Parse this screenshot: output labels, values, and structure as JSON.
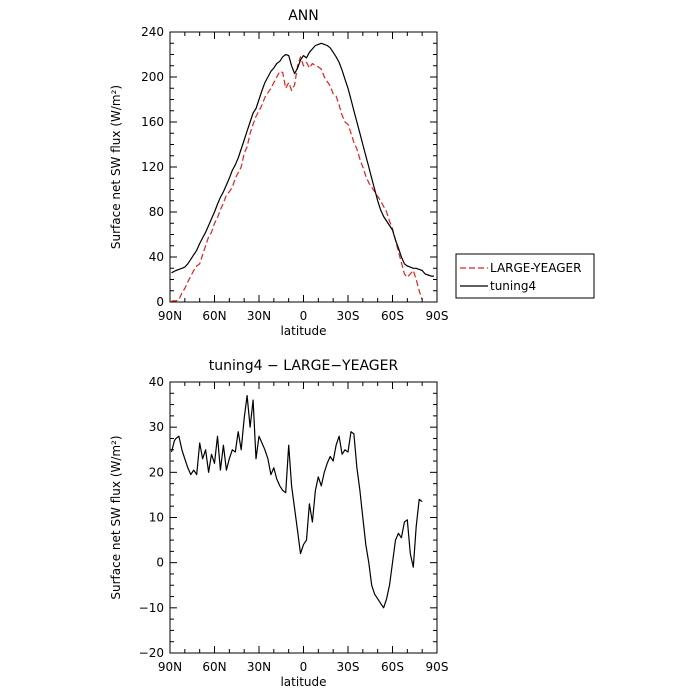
{
  "chart_data": [
    {
      "type": "line",
      "title": "ANN",
      "xlabel": "latitude",
      "ylabel": "Surface net SW flux (W/m²)",
      "xlim": [
        90,
        -90
      ],
      "ylim": [
        0,
        240
      ],
      "x_ticks": [
        90,
        60,
        30,
        0,
        -30,
        -60,
        -90
      ],
      "x_tick_labels": [
        "90N",
        "60N",
        "30N",
        "0",
        "30S",
        "60S",
        "90S"
      ],
      "y_ticks": [
        0,
        40,
        80,
        120,
        160,
        200,
        240
      ],
      "y_tick_labels": [
        "0",
        "40",
        "80",
        "120",
        "160",
        "200",
        "240"
      ],
      "legend_position": "right, outside the plot",
      "series": [
        {
          "name": "LARGE-YEAGER",
          "color": "#e32020",
          "dash": "dashed",
          "x": [
            89,
            86,
            84,
            82,
            80,
            78,
            76,
            74,
            72,
            70,
            68,
            66,
            64,
            62,
            60,
            58,
            56,
            54,
            52,
            50,
            48,
            46,
            44,
            42,
            40,
            38,
            36,
            34,
            32,
            30,
            28,
            26,
            24,
            22,
            20,
            18,
            16,
            14,
            12,
            10,
            8,
            6,
            4,
            2,
            0,
            -2,
            -4,
            -6,
            -8,
            -10,
            -12,
            -14,
            -16,
            -18,
            -20,
            -22,
            -24,
            -26,
            -28,
            -30,
            -32,
            -34,
            -36,
            -38,
            -40,
            -42,
            -44,
            -46,
            -48,
            -50,
            -52,
            -54,
            -56,
            -58,
            -60,
            -62,
            -64,
            -66,
            -68,
            -70,
            -72,
            -74,
            -76,
            -78,
            -80
          ],
          "y": [
            1,
            1,
            2,
            8,
            12,
            18,
            23,
            28,
            32,
            34,
            42,
            50,
            58,
            62,
            70,
            75,
            82,
            88,
            95,
            98,
            102,
            110,
            115,
            120,
            132,
            138,
            150,
            158,
            165,
            170,
            175,
            182,
            186,
            190,
            195,
            200,
            205,
            204,
            190,
            195,
            188,
            193,
            210,
            218,
            210,
            213,
            208,
            212,
            210,
            209,
            207,
            200,
            196,
            192,
            185,
            183,
            175,
            166,
            160,
            158,
            150,
            142,
            136,
            127,
            120,
            112,
            106,
            102,
            98,
            94,
            90,
            85,
            80,
            72,
            65,
            55,
            45,
            35,
            25,
            22,
            25,
            28,
            20,
            10,
            2
          ]
        },
        {
          "name": "tuning4",
          "color": "#000000",
          "dash": "solid",
          "x": [
            89,
            86,
            84,
            82,
            80,
            78,
            76,
            74,
            72,
            70,
            68,
            66,
            64,
            62,
            60,
            58,
            56,
            54,
            52,
            50,
            48,
            46,
            44,
            42,
            40,
            38,
            36,
            34,
            32,
            30,
            28,
            26,
            24,
            22,
            20,
            18,
            16,
            14,
            12,
            10,
            8,
            6,
            4,
            2,
            0,
            -2,
            -4,
            -6,
            -8,
            -10,
            -12,
            -14,
            -16,
            -18,
            -20,
            -22,
            -24,
            -26,
            -28,
            -30,
            -32,
            -34,
            -36,
            -38,
            -40,
            -42,
            -44,
            -46,
            -48,
            -50,
            -52,
            -54,
            -56,
            -58,
            -60,
            -62,
            -64,
            -66,
            -68,
            -70,
            -72,
            -74,
            -76,
            -78,
            -80,
            -82,
            -84,
            -86,
            -88
          ],
          "y": [
            26,
            28,
            29,
            30,
            31,
            34,
            38,
            42,
            46,
            52,
            57,
            62,
            68,
            74,
            80,
            87,
            93,
            98,
            104,
            110,
            117,
            122,
            128,
            136,
            144,
            152,
            160,
            168,
            172,
            180,
            188,
            195,
            200,
            205,
            208,
            212,
            214,
            218,
            220,
            219,
            210,
            203,
            208,
            215,
            219,
            217,
            222,
            225,
            228,
            229,
            230,
            229,
            228,
            226,
            222,
            218,
            213,
            206,
            198,
            190,
            180,
            170,
            160,
            150,
            140,
            130,
            120,
            110,
            100,
            90,
            82,
            76,
            72,
            68,
            64,
            55,
            48,
            40,
            34,
            32,
            31,
            30,
            30,
            29,
            28,
            25,
            24,
            23,
            23
          ]
        }
      ]
    },
    {
      "type": "line",
      "title": "tuning4 − LARGE−YEAGER",
      "xlabel": "latitude",
      "ylabel": "Surface net SW flux (W/m²)",
      "xlim": [
        90,
        -90
      ],
      "ylim": [
        -20,
        40
      ],
      "x_ticks": [
        90,
        60,
        30,
        0,
        -30,
        -60,
        -90
      ],
      "x_tick_labels": [
        "90N",
        "60N",
        "30N",
        "0",
        "30S",
        "60S",
        "90S"
      ],
      "y_ticks": [
        -20,
        -10,
        0,
        10,
        20,
        30,
        40
      ],
      "y_tick_labels": [
        "−20",
        "−10",
        "0",
        "10",
        "20",
        "30",
        "40"
      ],
      "series": [
        {
          "color": "#000000",
          "dash": "solid",
          "x": [
            89,
            87,
            86,
            84,
            82,
            80,
            78,
            76,
            74,
            72,
            70,
            68,
            66,
            64,
            62,
            60,
            58,
            56,
            54,
            52,
            50,
            48,
            46,
            44,
            42,
            40,
            38,
            36,
            34,
            32,
            30,
            28,
            26,
            24,
            22,
            20,
            18,
            16,
            14,
            12,
            10,
            8,
            6,
            4,
            2,
            0,
            -2,
            -4,
            -6,
            -8,
            -10,
            -12,
            -14,
            -16,
            -18,
            -20,
            -22,
            -24,
            -26,
            -28,
            -30,
            -32,
            -34,
            -36,
            -38,
            -40,
            -42,
            -44,
            -46,
            -48,
            -50,
            -52,
            -54,
            -56,
            -58,
            -60,
            -62,
            -64,
            -66,
            -68,
            -70,
            -72,
            -74,
            -76,
            -78,
            -80
          ],
          "y": [
            24.5,
            27,
            27.5,
            28,
            25,
            23,
            21,
            19.5,
            20.5,
            19.5,
            26.5,
            23,
            25,
            20,
            24,
            22,
            28,
            20.5,
            26,
            20.5,
            23,
            25,
            24.5,
            29,
            25,
            32,
            37,
            30,
            36,
            23,
            28,
            26.5,
            25,
            23,
            19.5,
            21,
            18.5,
            17,
            16,
            15.5,
            26,
            17,
            12,
            7,
            2,
            4,
            5,
            13,
            9,
            16,
            19,
            17,
            20,
            22,
            23.5,
            22.5,
            26,
            28,
            24,
            25,
            24.5,
            29,
            28.5,
            21,
            16,
            10,
            4,
            0,
            -5,
            -7,
            -8,
            -9,
            -10,
            -8,
            -5,
            0,
            5,
            6.5,
            5.5,
            9,
            9.5,
            2,
            -1,
            8,
            14,
            13.5
          ]
        }
      ]
    }
  ]
}
